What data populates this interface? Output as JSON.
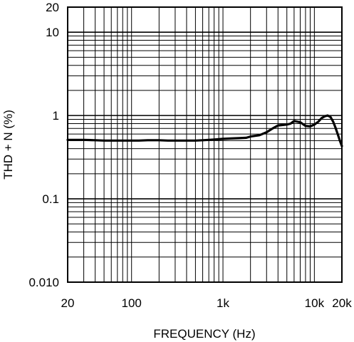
{
  "chart_data": {
    "type": "line",
    "title": "",
    "xlabel": "FREQUENCY (Hz)",
    "ylabel": "THD + N (%)",
    "x_scale": "log",
    "y_scale": "log",
    "xlim": [
      20,
      20000
    ],
    "ylim": [
      0.01,
      20
    ],
    "grid": true,
    "legend": "none",
    "line_color": "#000000",
    "x_ticks": [
      {
        "value": 20,
        "label": "20"
      },
      {
        "value": 100,
        "label": "100"
      },
      {
        "value": 1000,
        "label": "1k"
      },
      {
        "value": 10000,
        "label": "10k"
      },
      {
        "value": 20000,
        "label": "20k"
      }
    ],
    "y_ticks": [
      {
        "value": 0.01,
        "label": "0.010"
      },
      {
        "value": 0.1,
        "label": "0.1"
      },
      {
        "value": 1,
        "label": "1"
      },
      {
        "value": 10,
        "label": "10"
      },
      {
        "value": 20,
        "label": "20"
      }
    ],
    "series": [
      {
        "x": [
          20,
          25,
          30,
          40,
          50,
          60,
          70,
          80,
          100,
          120,
          150,
          200,
          250,
          300,
          400,
          500,
          600,
          700,
          800,
          1000,
          1200,
          1500,
          1800,
          2000,
          2500,
          3000,
          3500,
          4000,
          5000,
          5500,
          6000,
          7000,
          8000,
          9000,
          10000,
          11000,
          12000,
          13000,
          14000,
          15000,
          16000,
          17000,
          18000,
          19000,
          20000
        ],
        "y": [
          0.51,
          0.51,
          0.51,
          0.505,
          0.5,
          0.5,
          0.5,
          0.5,
          0.5,
          0.5,
          0.505,
          0.505,
          0.5,
          0.5,
          0.5,
          0.5,
          0.505,
          0.51,
          0.515,
          0.525,
          0.53,
          0.535,
          0.54,
          0.56,
          0.58,
          0.63,
          0.7,
          0.76,
          0.78,
          0.8,
          0.86,
          0.83,
          0.75,
          0.74,
          0.78,
          0.84,
          0.93,
          0.98,
          1.0,
          0.96,
          0.85,
          0.72,
          0.6,
          0.5,
          0.43
        ]
      }
    ]
  }
}
